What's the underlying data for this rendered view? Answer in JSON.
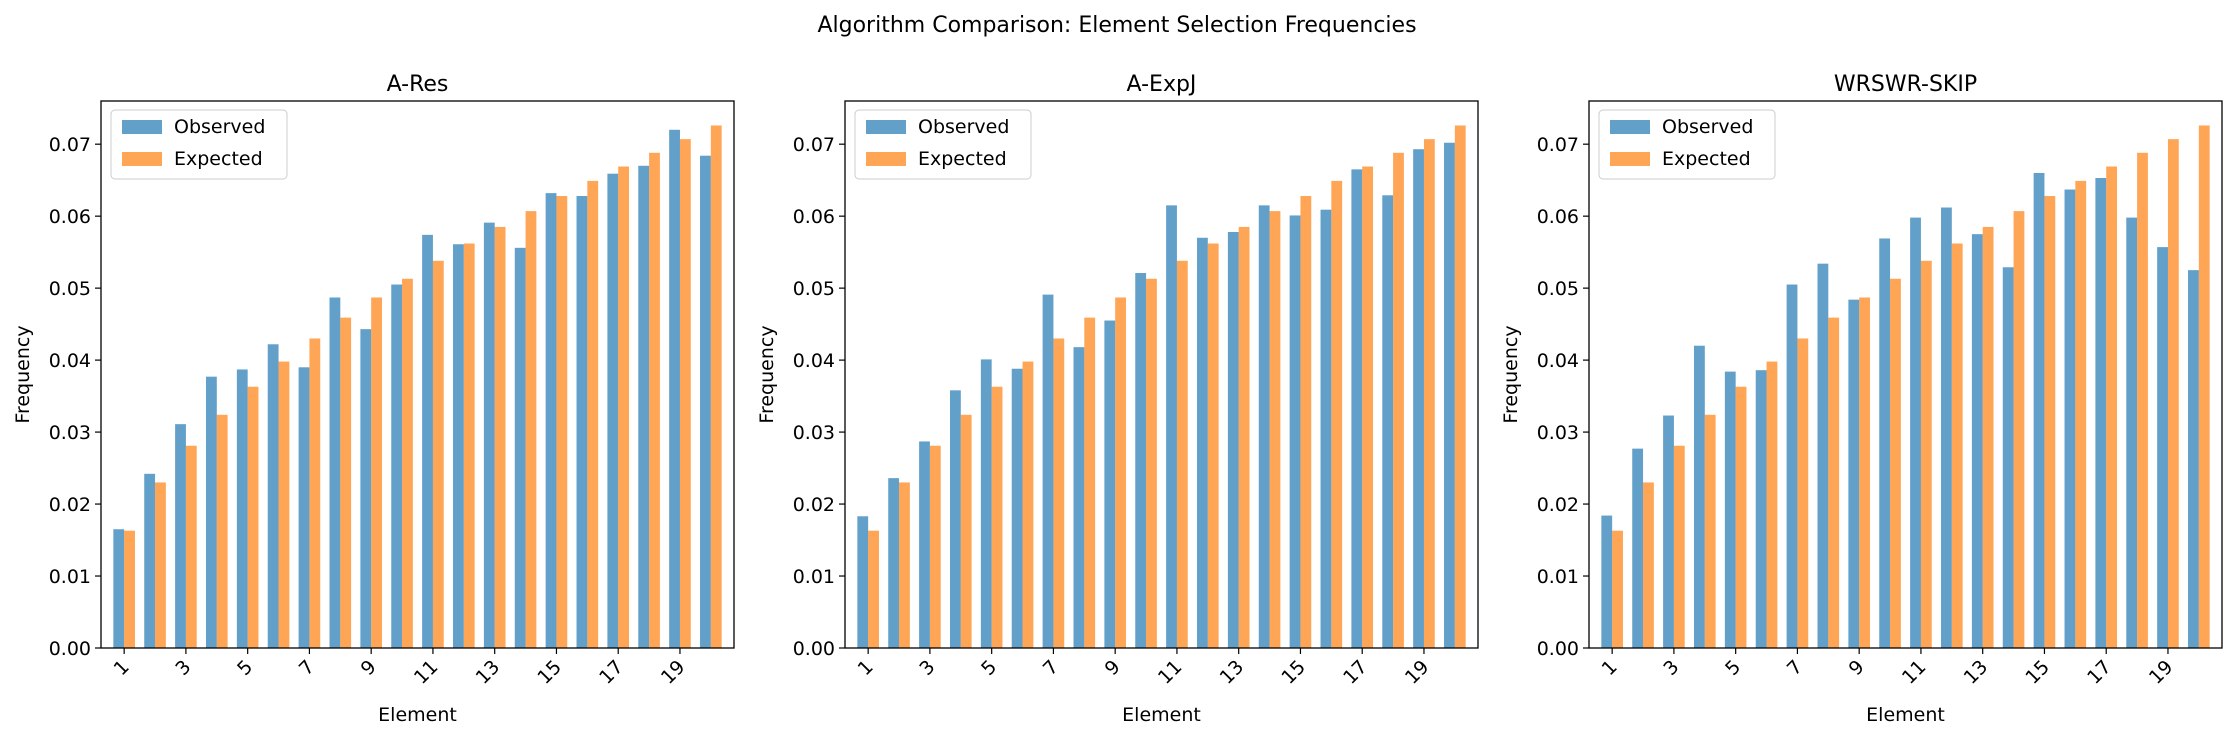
{
  "figure": {
    "suptitle": "Algorithm Comparison: Element Selection Frequencies"
  },
  "colors": {
    "observed": "#1f77b4",
    "expected": "#ff7f0e"
  },
  "chart_data": [
    {
      "type": "bar",
      "title": "A-Res",
      "xlabel": "Element",
      "ylabel": "Frequency",
      "ylim": [
        0,
        0.076
      ],
      "yticks": [
        "0.00",
        "0.01",
        "0.02",
        "0.03",
        "0.04",
        "0.05",
        "0.06",
        "0.07"
      ],
      "xticks": [
        "1",
        "3",
        "5",
        "7",
        "9",
        "11",
        "13",
        "15",
        "17",
        "19"
      ],
      "legend": "top-left",
      "categories": [
        1,
        2,
        3,
        4,
        5,
        6,
        7,
        8,
        9,
        10,
        11,
        12,
        13,
        14,
        15,
        16,
        17,
        18,
        19,
        20
      ],
      "series": [
        {
          "name": "Observed",
          "values": [
            0.0165,
            0.0242,
            0.0311,
            0.0377,
            0.0387,
            0.0422,
            0.039,
            0.0487,
            0.0443,
            0.0505,
            0.0574,
            0.0561,
            0.0591,
            0.0556,
            0.0632,
            0.0628,
            0.0659,
            0.067,
            0.072,
            0.0684
          ]
        },
        {
          "name": "Expected",
          "values": [
            0.0163,
            0.023,
            0.0281,
            0.0324,
            0.0363,
            0.0398,
            0.043,
            0.0459,
            0.0487,
            0.0513,
            0.0538,
            0.0562,
            0.0585,
            0.0607,
            0.0628,
            0.0649,
            0.0669,
            0.0688,
            0.0707,
            0.0726
          ]
        }
      ]
    },
    {
      "type": "bar",
      "title": "A-ExpJ",
      "xlabel": "Element",
      "ylabel": "Frequency",
      "ylim": [
        0,
        0.076
      ],
      "yticks": [
        "0.00",
        "0.01",
        "0.02",
        "0.03",
        "0.04",
        "0.05",
        "0.06",
        "0.07"
      ],
      "xticks": [
        "1",
        "3",
        "5",
        "7",
        "9",
        "11",
        "13",
        "15",
        "17",
        "19"
      ],
      "legend": "top-left",
      "categories": [
        1,
        2,
        3,
        4,
        5,
        6,
        7,
        8,
        9,
        10,
        11,
        12,
        13,
        14,
        15,
        16,
        17,
        18,
        19,
        20
      ],
      "series": [
        {
          "name": "Observed",
          "values": [
            0.0183,
            0.0236,
            0.0287,
            0.0358,
            0.0401,
            0.0388,
            0.0491,
            0.0418,
            0.0455,
            0.0521,
            0.0615,
            0.057,
            0.0578,
            0.0615,
            0.0601,
            0.0609,
            0.0665,
            0.0629,
            0.0693,
            0.0702
          ]
        },
        {
          "name": "Expected",
          "values": [
            0.0163,
            0.023,
            0.0281,
            0.0324,
            0.0363,
            0.0398,
            0.043,
            0.0459,
            0.0487,
            0.0513,
            0.0538,
            0.0562,
            0.0585,
            0.0607,
            0.0628,
            0.0649,
            0.0669,
            0.0688,
            0.0707,
            0.0726
          ]
        }
      ]
    },
    {
      "type": "bar",
      "title": "WRSWR-SKIP",
      "xlabel": "Element",
      "ylabel": "Frequency",
      "ylim": [
        0,
        0.076
      ],
      "yticks": [
        "0.00",
        "0.01",
        "0.02",
        "0.03",
        "0.04",
        "0.05",
        "0.06",
        "0.07"
      ],
      "xticks": [
        "1",
        "3",
        "5",
        "7",
        "9",
        "11",
        "13",
        "15",
        "17",
        "19"
      ],
      "legend": "top-left",
      "categories": [
        1,
        2,
        3,
        4,
        5,
        6,
        7,
        8,
        9,
        10,
        11,
        12,
        13,
        14,
        15,
        16,
        17,
        18,
        19,
        20
      ],
      "series": [
        {
          "name": "Observed",
          "values": [
            0.0184,
            0.0277,
            0.0323,
            0.042,
            0.0384,
            0.0386,
            0.0505,
            0.0534,
            0.0484,
            0.0569,
            0.0598,
            0.0612,
            0.0575,
            0.0529,
            0.066,
            0.0637,
            0.0653,
            0.0598,
            0.0557,
            0.0525
          ]
        },
        {
          "name": "Expected",
          "values": [
            0.0163,
            0.023,
            0.0281,
            0.0324,
            0.0363,
            0.0398,
            0.043,
            0.0459,
            0.0487,
            0.0513,
            0.0538,
            0.0562,
            0.0585,
            0.0607,
            0.0628,
            0.0649,
            0.0669,
            0.0688,
            0.0707,
            0.0726
          ]
        }
      ]
    }
  ]
}
